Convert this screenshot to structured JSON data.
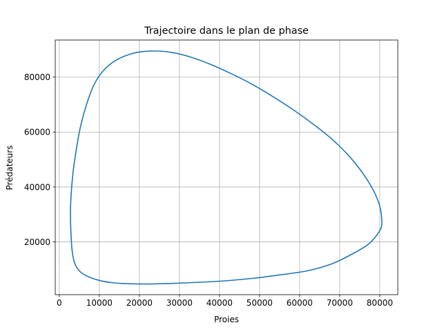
{
  "chart_data": {
    "type": "line",
    "title": "Trajectoire dans le plan de phase",
    "xlabel": "Proies",
    "ylabel": "Prédateurs",
    "xlim": [
      -1000,
      84500
    ],
    "ylim": [
      800,
      93500
    ],
    "xticks": [
      0,
      10000,
      20000,
      30000,
      40000,
      50000,
      60000,
      70000,
      80000
    ],
    "xtick_labels": [
      "0",
      "10000",
      "20000",
      "30000",
      "40000",
      "50000",
      "60000",
      "70000",
      "80000"
    ],
    "yticks": [
      20000,
      40000,
      60000,
      80000
    ],
    "ytick_labels": [
      "20000",
      "40000",
      "60000",
      "80000"
    ],
    "grid": true,
    "line_color": "#1f77b4",
    "grid_color": "#b0b0b0",
    "series": [
      {
        "closed": true,
        "points": [
          [
            80500,
            28000
          ],
          [
            80300,
            25000
          ],
          [
            79000,
            22000
          ],
          [
            77000,
            19000
          ],
          [
            73000,
            15500
          ],
          [
            68000,
            12000
          ],
          [
            62000,
            9500
          ],
          [
            55000,
            8000
          ],
          [
            48000,
            6700
          ],
          [
            40000,
            5700
          ],
          [
            30000,
            5000
          ],
          [
            23000,
            4700
          ],
          [
            17000,
            4800
          ],
          [
            13000,
            5200
          ],
          [
            10000,
            6000
          ],
          [
            7000,
            7500
          ],
          [
            5000,
            9500
          ],
          [
            3800,
            12500
          ],
          [
            3200,
            17000
          ],
          [
            2900,
            24000
          ],
          [
            2800,
            31000
          ],
          [
            3000,
            38000
          ],
          [
            3500,
            46000
          ],
          [
            4300,
            54000
          ],
          [
            5300,
            62000
          ],
          [
            6800,
            70000
          ],
          [
            8600,
            77000
          ],
          [
            10800,
            82000
          ],
          [
            14000,
            86000
          ],
          [
            18500,
            88700
          ],
          [
            23000,
            89500
          ],
          [
            28000,
            89000
          ],
          [
            33000,
            87200
          ],
          [
            38000,
            84500
          ],
          [
            43000,
            81200
          ],
          [
            48000,
            77500
          ],
          [
            53000,
            73200
          ],
          [
            58000,
            68500
          ],
          [
            63000,
            63300
          ],
          [
            68000,
            57500
          ],
          [
            72500,
            51000
          ],
          [
            76000,
            44500
          ],
          [
            78500,
            38500
          ],
          [
            80000,
            33000
          ]
        ]
      }
    ]
  }
}
